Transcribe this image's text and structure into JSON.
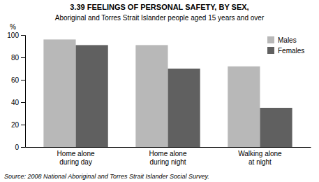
{
  "chart_data": {
    "type": "bar",
    "title": "3.39   FEELINGS OF PERSONAL SAFETY, BY SEX,",
    "subtitle": "Aboriginal and Torres Strait Islander people aged 15 years and over",
    "categories": [
      "Home alone\nduring day",
      "Home alone\nduring night",
      "Walking alone\nat night"
    ],
    "series": [
      {
        "name": "Males",
        "color": "#b8b8b8",
        "values": [
          96,
          91,
          72
        ]
      },
      {
        "name": "Females",
        "color": "#606060",
        "values": [
          91,
          70,
          35
        ]
      }
    ],
    "ylabel": "%",
    "ylim": [
      0,
      100
    ],
    "yticks": [
      0,
      20,
      40,
      60,
      80,
      100
    ],
    "grid": false,
    "legend": "upper right",
    "annotations": [
      "Source: 2008 National Aboriginal and Torres Strait Islander Social Survey."
    ]
  }
}
